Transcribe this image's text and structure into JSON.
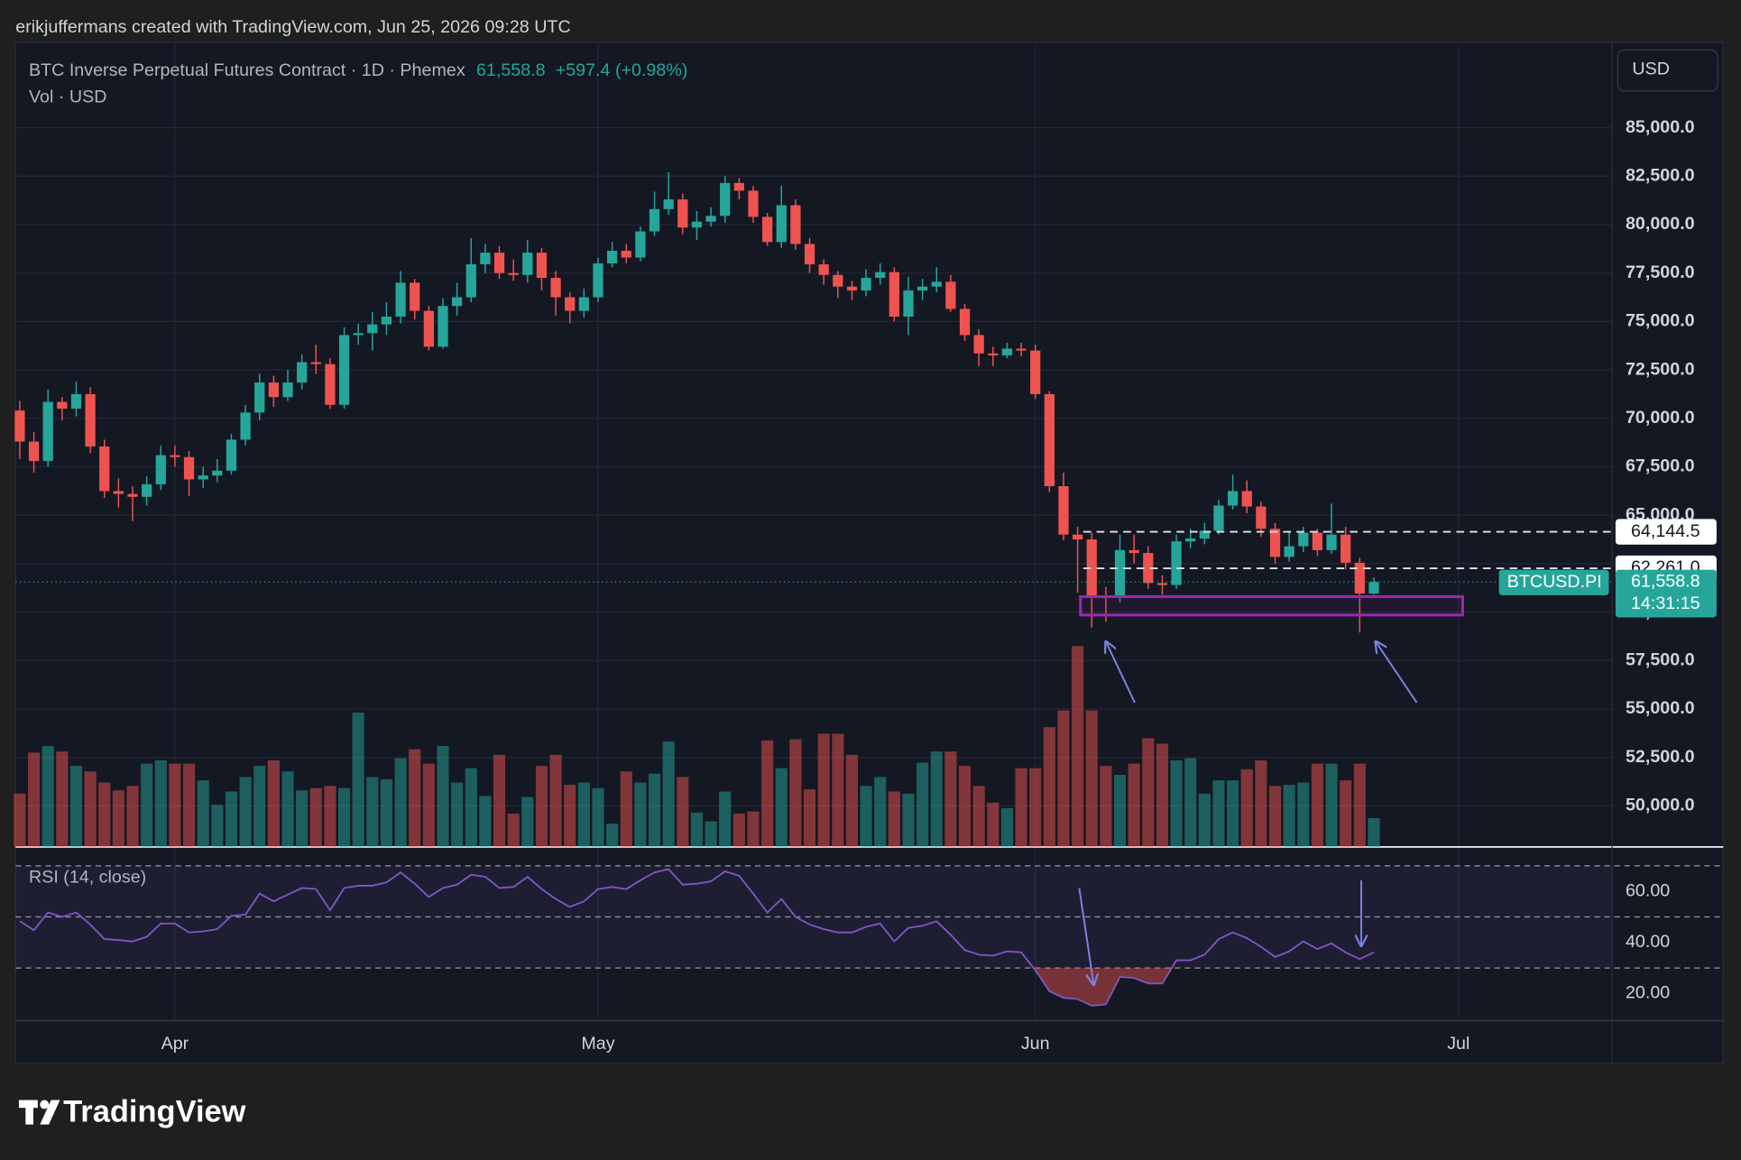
{
  "attribution": "erikjuffermans created with TradingView.com, Jun 25, 2026 09:28 UTC",
  "brand": "TradingView",
  "chart_data": {
    "type": "candlestick",
    "title": "BTC Inverse Perpetual Futures Contract · 1D · Phemex",
    "last_price": {
      "value": 61558.8,
      "label": "61,558.8"
    },
    "change_label": "+597.4 (+0.98%)",
    "volume_label": "Vol · USD",
    "currency": "USD",
    "symbol_tag": "BTCUSD.PI",
    "countdown": "14:31:15",
    "up_color": "#26a69a",
    "down_color": "#ef5350",
    "xlim": [
      -0.3,
      112.9
    ],
    "xticks": [
      {
        "value": 11,
        "label": "Apr"
      },
      {
        "value": 41,
        "label": "May"
      },
      {
        "value": 72,
        "label": "Jun"
      },
      {
        "value": 102,
        "label": "Jul"
      }
    ],
    "ylim": [
      47880,
      89300
    ],
    "yticks": [
      {
        "value": 50000,
        "label": "50,000.0"
      },
      {
        "value": 52500,
        "label": "52,500.0"
      },
      {
        "value": 55000,
        "label": "55,000.0"
      },
      {
        "value": 57500,
        "label": "57,500.0"
      },
      {
        "value": 60000,
        "label": "60,000.0"
      },
      {
        "value": 62500,
        "label": "62,500.0"
      },
      {
        "value": 65000,
        "label": "65,000.0"
      },
      {
        "value": 67500,
        "label": "67,500.0"
      },
      {
        "value": 70000,
        "label": "70,000.0"
      },
      {
        "value": 72500,
        "label": "72,500.0"
      },
      {
        "value": 75000,
        "label": "75,000.0"
      },
      {
        "value": 77500,
        "label": "77,500.0"
      },
      {
        "value": 80000,
        "label": "80,000.0"
      },
      {
        "value": 82500,
        "label": "82,500.0"
      },
      {
        "value": 85000,
        "label": "85,000.0"
      }
    ],
    "grid": true,
    "open": [
      70400,
      68800,
      67800,
      70850,
      70500,
      71250,
      68550,
      66250,
      66100,
      65950,
      66600,
      68100,
      68000,
      66850,
      67050,
      67300,
      68900,
      70300,
      71850,
      71100,
      71850,
      72900,
      72800,
      70700,
      74300,
      74400,
      74850,
      75250,
      77000,
      75550,
      73700,
      75800,
      76250,
      77950,
      78550,
      77500,
      77400,
      78550,
      77250,
      76250,
      75550,
      76250,
      78000,
      78650,
      78300,
      79650,
      80800,
      81300,
      79850,
      80150,
      80450,
      82150,
      81750,
      80400,
      79100,
      81000,
      79000,
      77950,
      77400,
      76800,
      76600,
      77250,
      77550,
      75250,
      76600,
      76800,
      77050,
      75650,
      74300,
      73350,
      73250,
      73600,
      73500,
      71250,
      66500,
      64000,
      63750,
      60850,
      60750,
      63200,
      63050,
      61500,
      61400,
      63650,
      63800,
      64200,
      65500,
      66250,
      65450,
      64300,
      62850,
      63400,
      64100,
      63200,
      64000,
      62550,
      60961.4
    ],
    "high": [
      70900,
      69300,
      71500,
      71100,
      71900,
      71600,
      68900,
      66900,
      66500,
      67000,
      68600,
      68600,
      68300,
      67500,
      67900,
      69200,
      70700,
      72300,
      72200,
      72500,
      73300,
      73800,
      73100,
      74700,
      74900,
      75500,
      76000,
      77600,
      77200,
      75800,
      76200,
      77000,
      79300,
      79000,
      78900,
      78200,
      79200,
      78800,
      77600,
      76500,
      76700,
      78300,
      79100,
      79000,
      79900,
      81700,
      82700,
      81600,
      80700,
      80900,
      82500,
      82400,
      82000,
      80600,
      82000,
      81300,
      79300,
      78200,
      77600,
      77100,
      77700,
      78000,
      77800,
      77300,
      77200,
      77800,
      77400,
      75900,
      74600,
      73700,
      73900,
      73900,
      73800,
      71400,
      67200,
      64400,
      64100,
      61300,
      64000,
      64000,
      63400,
      61900,
      64000,
      64300,
      64600,
      65800,
      67100,
      66800,
      65700,
      64600,
      64100,
      64400,
      64300,
      65600,
      64400,
      62800,
      61800
    ],
    "low": [
      67900,
      67200,
      67500,
      69900,
      70100,
      68200,
      65900,
      65400,
      64700,
      65500,
      66300,
      67500,
      66000,
      66400,
      66700,
      67100,
      68600,
      69900,
      70600,
      70900,
      71500,
      72300,
      70500,
      70500,
      73800,
      73500,
      74300,
      74900,
      75100,
      73500,
      73600,
      75300,
      76000,
      77500,
      77200,
      77100,
      77000,
      76600,
      75300,
      74900,
      75200,
      76000,
      77800,
      78000,
      78100,
      79400,
      80500,
      79500,
      79200,
      79900,
      80100,
      81300,
      80100,
      78900,
      78800,
      78700,
      77500,
      76900,
      76200,
      76100,
      76300,
      76900,
      75000,
      74300,
      76100,
      76500,
      75500,
      74000,
      72700,
      72700,
      73100,
      73200,
      71000,
      66200,
      63700,
      61000,
      59200,
      59500,
      60500,
      62500,
      61200,
      60900,
      61200,
      63300,
      63500,
      64000,
      65300,
      65100,
      63900,
      62500,
      62600,
      63100,
      62900,
      63000,
      62200,
      58950,
      60900
    ],
    "close": [
      68800,
      67800,
      70850,
      70500,
      71250,
      68550,
      66250,
      66100,
      65950,
      66600,
      68100,
      68000,
      66850,
      67050,
      67300,
      68900,
      70300,
      71850,
      71100,
      71850,
      72900,
      72800,
      70700,
      74300,
      74400,
      74850,
      75250,
      77000,
      75550,
      73700,
      75800,
      76250,
      77950,
      78550,
      77500,
      77400,
      78550,
      77250,
      76250,
      75550,
      76250,
      78000,
      78650,
      78300,
      79650,
      80800,
      81300,
      79850,
      80150,
      80450,
      82150,
      81750,
      80400,
      79100,
      81000,
      79000,
      77950,
      77400,
      76800,
      76600,
      77250,
      77550,
      75250,
      76600,
      76800,
      77050,
      75650,
      74300,
      73350,
      73250,
      73600,
      73500,
      71250,
      66500,
      64000,
      63750,
      60850,
      60750,
      63200,
      63050,
      61500,
      61400,
      63650,
      63800,
      64200,
      65500,
      66250,
      65450,
      64300,
      62850,
      63400,
      64100,
      63200,
      64000,
      62550,
      60961.4,
      61558.8
    ],
    "volume": {
      "values": [
        48,
        85,
        91,
        86,
        73,
        68,
        58,
        51,
        55,
        75,
        78,
        75,
        75,
        60,
        38,
        50,
        63,
        73,
        78,
        68,
        51,
        53,
        55,
        53,
        121,
        63,
        61,
        80,
        88,
        75,
        91,
        58,
        71,
        46,
        83,
        30,
        45,
        73,
        83,
        56,
        58,
        53,
        21,
        68,
        58,
        66,
        95,
        63,
        31,
        23,
        50,
        30,
        32,
        96,
        71,
        97,
        52,
        102,
        102,
        83,
        55,
        63,
        50,
        48,
        76,
        86,
        86,
        73,
        55,
        40,
        35,
        71,
        71,
        108,
        123,
        181,
        123,
        73,
        65,
        75,
        98,
        93,
        78,
        80,
        48,
        60,
        60,
        70,
        78,
        55,
        56,
        58,
        75,
        75,
        60,
        75,
        26
      ]
    },
    "levels": [
      {
        "value": 64144.5,
        "label": "64,144.5",
        "from": 75.4
      },
      {
        "value": 62261.0,
        "label": "62,261.0",
        "from": 75.4
      }
    ],
    "zone": {
      "from": 75.2,
      "to": 102.3,
      "low": 59850,
      "high": 60800,
      "color": "#9c27b0"
    },
    "rsi": {
      "label": "RSI (14, close)",
      "color": "#7e57c2",
      "ylim": [
        10,
        75.2
      ],
      "yticks": [
        {
          "value": 20,
          "label": "20.00"
        },
        {
          "value": 40,
          "label": "40.00"
        },
        {
          "value": 60,
          "label": "60.00"
        }
      ],
      "bands": [
        30,
        50,
        70
      ],
      "values": [
        48.3,
        44.8,
        51.7,
        50,
        51.7,
        47,
        41.3,
        40.9,
        40.4,
        42.2,
        47.4,
        47.4,
        43.9,
        44.3,
        45.2,
        50.4,
        50.9,
        59.1,
        56.1,
        58.7,
        61.3,
        60.9,
        52.6,
        61.3,
        62.2,
        62.2,
        63.5,
        67.4,
        63,
        57.8,
        61.3,
        62.6,
        66.5,
        65.7,
        61.3,
        61.7,
        65.7,
        60.9,
        57,
        53.9,
        56.1,
        60.9,
        61.7,
        60.9,
        64.3,
        67.4,
        68.7,
        62.6,
        63,
        63.9,
        67.8,
        66.1,
        59.1,
        51.7,
        57,
        50,
        47,
        45.2,
        43.9,
        43.9,
        46.1,
        47.4,
        40.4,
        45.7,
        46.5,
        48.3,
        43,
        37,
        35.2,
        34.8,
        36.5,
        36.1,
        29.1,
        20.9,
        18.3,
        17.8,
        15.2,
        15.7,
        26.5,
        26.1,
        23.9,
        23.9,
        33,
        33,
        35.2,
        41.3,
        43.9,
        41.7,
        38.3,
        34.3,
        36.5,
        40.4,
        37.4,
        39.6,
        36.1,
        33.5,
        36.1
      ]
    }
  }
}
